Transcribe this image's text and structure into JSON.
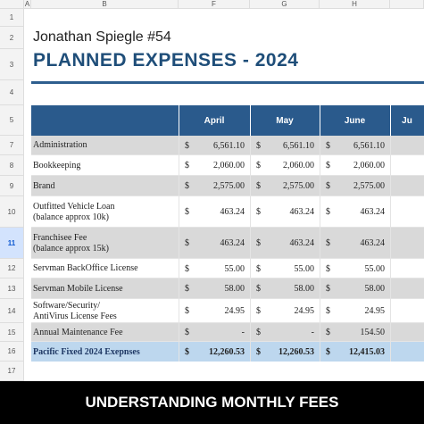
{
  "sheet": {
    "column_letters": [
      "A",
      "B",
      "F",
      "G",
      "H"
    ],
    "row_numbers": [
      "1",
      "2",
      "3",
      "4",
      "5",
      "7",
      "8",
      "9",
      "10",
      "11",
      "12",
      "13",
      "14",
      "15",
      "16",
      "17"
    ]
  },
  "header": {
    "name": "Jonathan Spiegle #54",
    "title": "PLANNED EXPENSES - 2024"
  },
  "table": {
    "currency": "$",
    "months": [
      "April",
      "May",
      "June",
      "Ju"
    ],
    "rows": [
      {
        "label": [
          "Administration"
        ],
        "cells": [
          "6,561.10",
          "6,561.10",
          "6,561.10"
        ]
      },
      {
        "label": [
          "Bookkeeping"
        ],
        "cells": [
          "2,060.00",
          "2,060.00",
          "2,060.00"
        ]
      },
      {
        "label": [
          "Brand"
        ],
        "cells": [
          "2,575.00",
          "2,575.00",
          "2,575.00"
        ]
      },
      {
        "label": [
          "Outfitted Vehicle Loan",
          "(balance approx 10k)"
        ],
        "cells": [
          "463.24",
          "463.24",
          "463.24"
        ]
      },
      {
        "label": [
          "Franchisee Fee",
          "(balance approx 15k)"
        ],
        "cells": [
          "463.24",
          "463.24",
          "463.24"
        ]
      },
      {
        "label": [
          "Servman BackOffice License"
        ],
        "cells": [
          "55.00",
          "55.00",
          "55.00"
        ]
      },
      {
        "label": [
          "Servman Mobile License"
        ],
        "cells": [
          "58.00",
          "58.00",
          "58.00"
        ]
      },
      {
        "label": [
          "Software/Security/",
          "AntiVirus License Fees"
        ],
        "cells": [
          "24.95",
          "24.95",
          "24.95"
        ]
      },
      {
        "label": [
          "Annual Maintenance Fee"
        ],
        "cells": [
          "-",
          "-",
          "154.50"
        ]
      }
    ],
    "total": {
      "label": "Pacific Fixed 2024 Exepnses",
      "cells": [
        "12,260.53",
        "12,260.53",
        "12,415.03"
      ]
    }
  },
  "banner": "UNDERSTANDING MONTHLY FEES"
}
